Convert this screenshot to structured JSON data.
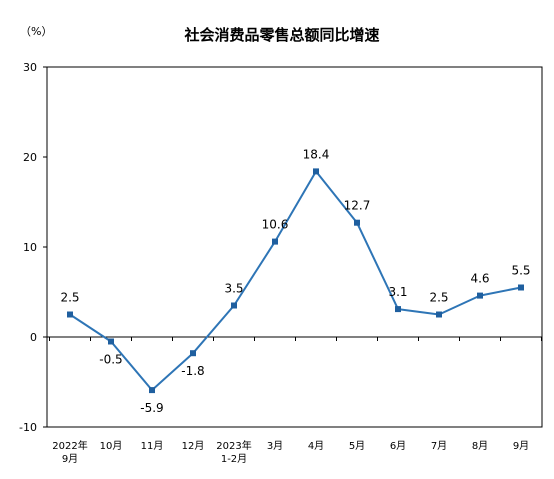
{
  "chart_data": {
    "type": "line",
    "title": "社会消费品零售总额同比增速",
    "unit_label": "（%）",
    "ylim": [
      -10,
      30
    ],
    "yticks": [
      "-10",
      "0",
      "10",
      "20",
      "30"
    ],
    "categories": [
      [
        "2022年",
        "9月"
      ],
      [
        "10月"
      ],
      [
        "11月"
      ],
      [
        "12月"
      ],
      [
        "2023年",
        "1-2月"
      ],
      [
        "3月"
      ],
      [
        "4月"
      ],
      [
        "5月"
      ],
      [
        "6月"
      ],
      [
        "7月"
      ],
      [
        "8月"
      ],
      [
        "9月"
      ]
    ],
    "values": [
      2.5,
      -0.5,
      -5.9,
      -1.8,
      3.5,
      10.6,
      18.4,
      12.7,
      3.1,
      2.5,
      4.6,
      5.5
    ],
    "data_labels": [
      "2.5",
      "-0.5",
      "-5.9",
      "-1.8",
      "3.5",
      "10.6",
      "18.4",
      "12.7",
      "3.1",
      "2.5",
      "4.6",
      "5.5"
    ],
    "grid": false,
    "line_color": "#2E75B6",
    "marker_color": "#1F5F9F"
  }
}
